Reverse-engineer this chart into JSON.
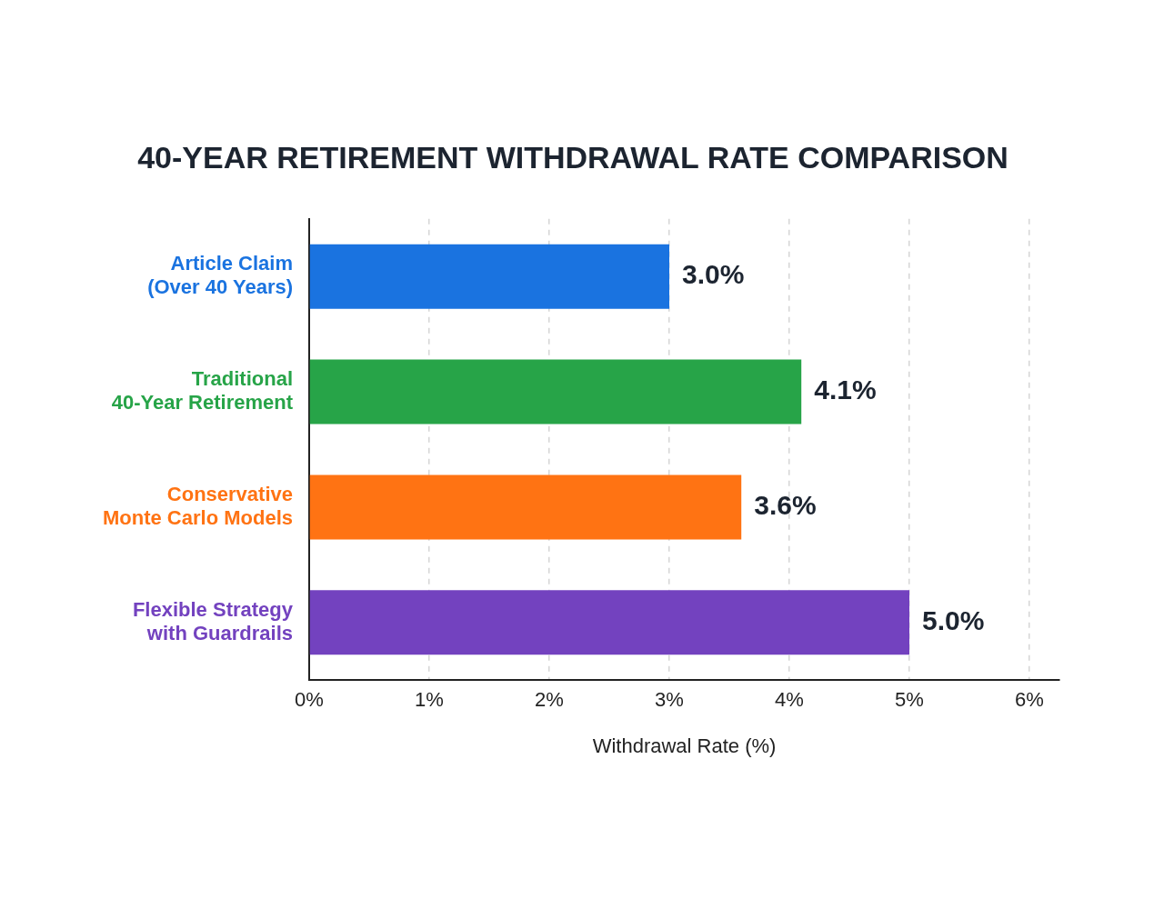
{
  "chart_data": {
    "type": "bar",
    "orientation": "horizontal",
    "title": "40-YEAR RETIREMENT WITHDRAWAL RATE COMPARISON",
    "xlabel": "Withdrawal Rate (%)",
    "categories": [
      "Article Claim (Over 40 Years)",
      "Traditional 40-Year Retirement",
      "Conservative Monte Carlo Models",
      "Flexible Strategy with Guardrails"
    ],
    "values": [
      3.0,
      4.1,
      3.6,
      5.0
    ],
    "colors": [
      "#1a73e0",
      "#27a448",
      "#ff7313",
      "#7342bf"
    ],
    "value_labels": [
      "3.0%",
      "4.1%",
      "3.6%",
      "5.0%"
    ],
    "xlim": [
      0,
      6.25
    ],
    "xticks": [
      {
        "value": 0,
        "label": "0%"
      },
      {
        "value": 1,
        "label": "1%"
      },
      {
        "value": 2,
        "label": "2%"
      },
      {
        "value": 3,
        "label": "3%"
      },
      {
        "value": 4,
        "label": "4%"
      },
      {
        "value": 5,
        "label": "5%"
      },
      {
        "value": 6,
        "label": "6%"
      }
    ],
    "grid": "x",
    "legend": false
  }
}
